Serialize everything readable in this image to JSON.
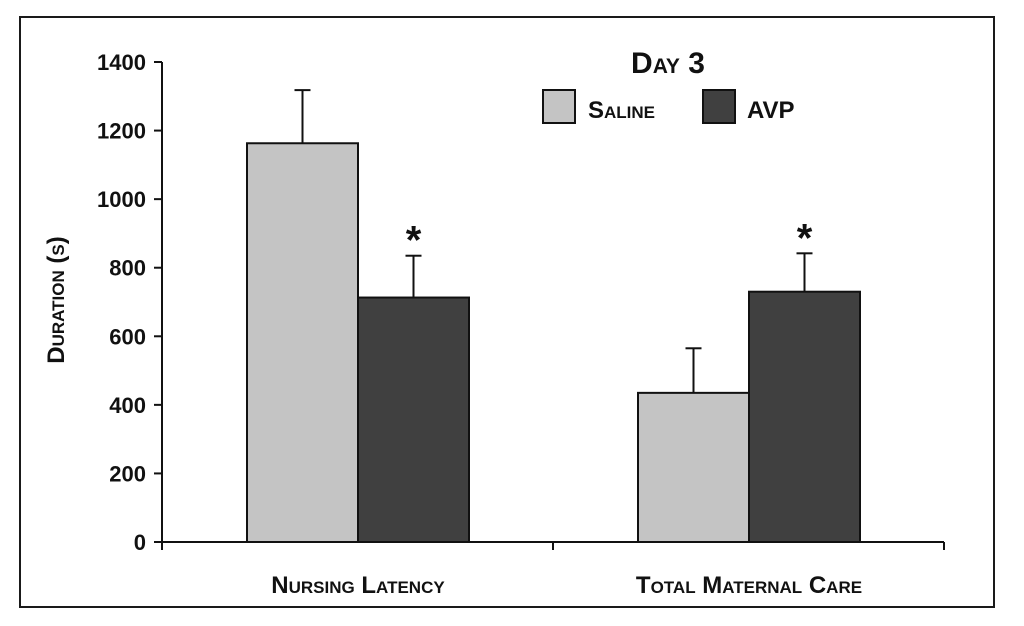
{
  "chart_data": {
    "type": "bar",
    "title": "Day 3",
    "ylabel": "Duration (s)",
    "xlabel": "",
    "ylim": [
      0,
      1400
    ],
    "yticks": [
      0,
      200,
      400,
      600,
      800,
      1000,
      1200,
      1400
    ],
    "categories": [
      "Nursing Latency",
      "Total Maternal Care"
    ],
    "series": [
      {
        "name": "Saline",
        "color": "#c4c4c4",
        "values": [
          1163,
          435
        ],
        "errors": [
          155,
          130
        ]
      },
      {
        "name": "AVP",
        "color": "#404040",
        "values": [
          713,
          730
        ],
        "errors": [
          122,
          112
        ]
      }
    ],
    "annotations": [
      {
        "series": 1,
        "category": 0,
        "text": "*"
      },
      {
        "series": 1,
        "category": 1,
        "text": "*"
      }
    ],
    "legend_position": "top-right",
    "grid": false
  }
}
